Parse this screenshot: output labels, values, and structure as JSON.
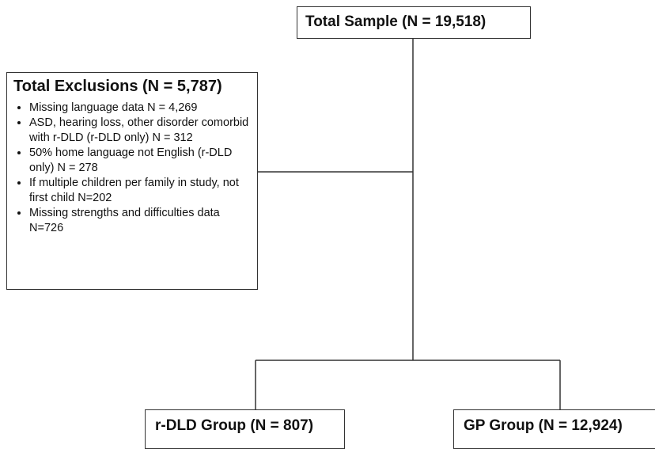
{
  "nodes": [
    {
      "label": "Total Sample (N = 19,518)"
    },
    {
      "label": "Total Exclusions (N = 5,787)",
      "items": [
        "Missing language data N = 4,269",
        "ASD, hearing loss, other disorder comorbid with r-DLD (r-DLD only) N = 312",
        "50% home language not English (r-DLD only) N = 278",
        "If multiple children per family in study, not first child N=202",
        "Missing strengths and difficulties data N=726"
      ]
    },
    {
      "label": "r-DLD Group (N = 807)"
    },
    {
      "label": "GP Group (N = 12,924)"
    }
  ]
}
